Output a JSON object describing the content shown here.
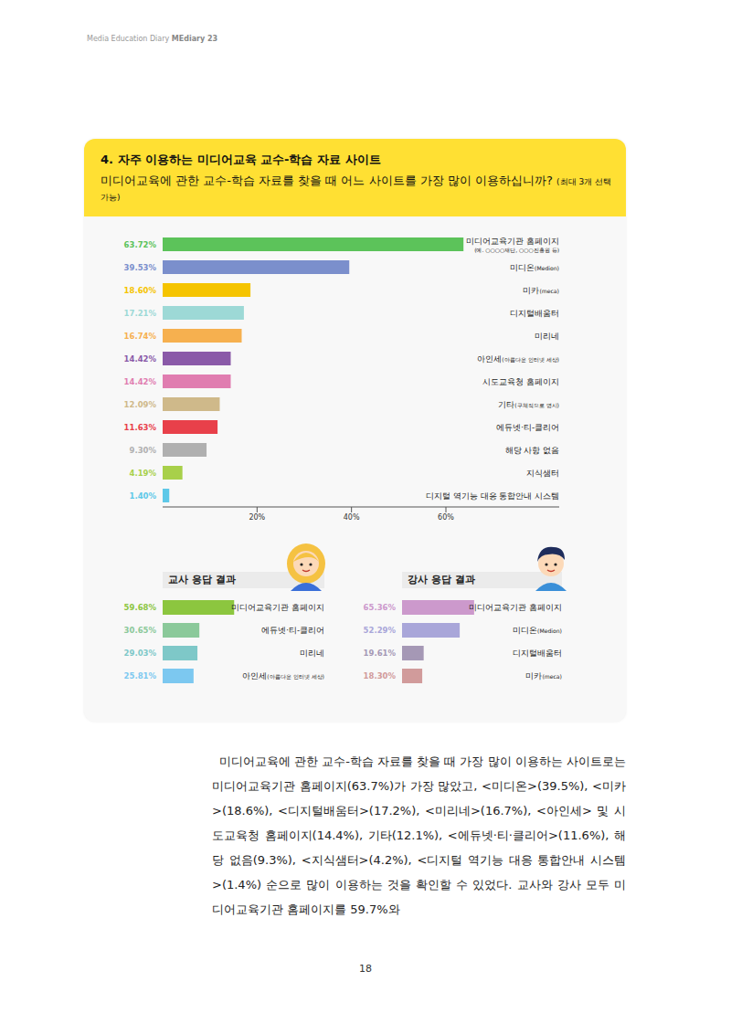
{
  "header": {
    "text": "Media Education Diary",
    "brand": "MEdiary 23"
  },
  "section": {
    "title": "4. 자주 이용하는 미디어교육 교수-학습 자료 사이트",
    "question": "미디어교육에 관한 교수-학습 자료를 찾을 때 어느 사이트를 가장 많이 이용하십니까?",
    "note": "(최대 3개 선택 가능)"
  },
  "chart_data": [
    {
      "type": "bar",
      "orientation": "horizontal",
      "categories": [
        "미디어교육기관 홈페이지\n(예. ○○○○재단, ○○○진흥원 등)",
        "미디온(Medion)",
        "미카(meca)",
        "디지털배움터",
        "미리네",
        "아인세(아름다운 인터넷 세상)",
        "시도교육청 홈페이지",
        "기타(구체적으로 명시)",
        "에듀넷·티-클리어",
        "해당 사항 없음",
        "지식샘터",
        "디지털 역기능 대응 통합안내 시스템"
      ],
      "values": [
        63.72,
        39.53,
        18.6,
        17.21,
        16.74,
        14.42,
        14.42,
        12.09,
        11.63,
        9.3,
        4.19,
        1.4
      ],
      "value_labels": [
        "63.72%",
        "39.53%",
        "18.60%",
        "17.21%",
        "16.74%",
        "14.42%",
        "14.42%",
        "12.09%",
        "11.63%",
        "9.30%",
        "4.19%",
        "1.40%"
      ],
      "colors": [
        "#5cc35a",
        "#7b8fcc",
        "#f5c400",
        "#9dd9d6",
        "#f6b04f",
        "#8a5aa8",
        "#e07db0",
        "#cfb98a",
        "#e8404a",
        "#b0b0b0",
        "#a8d04a",
        "#5ec8e8"
      ],
      "data_labels": true,
      "xlim": [
        0,
        84
      ],
      "xticks": [
        {
          "value": 20,
          "label": "20%"
        },
        {
          "value": 40,
          "label": "40%"
        },
        {
          "value": 60,
          "label": "60%"
        }
      ],
      "grid": false
    },
    {
      "type": "bar",
      "title": "교사 응답 결과",
      "orientation": "horizontal",
      "categories": [
        "미디어교육기관 홈페이지",
        "에듀넷·티-클리어",
        "미리네",
        "아인세(아름다운 인터넷 세상)"
      ],
      "values": [
        59.68,
        30.65,
        29.03,
        25.81
      ],
      "value_labels": [
        "59.68%",
        "30.65%",
        "29.03%",
        "25.81%"
      ],
      "colors": [
        "#8cc63f",
        "#8bc99a",
        "#7ec8c8",
        "#7cc8f0"
      ],
      "data_labels": true,
      "xlim": [
        0,
        135
      ],
      "tick_labels": "y",
      "grid": false
    },
    {
      "type": "bar",
      "title": "강사 응답 결과",
      "orientation": "horizontal",
      "categories": [
        "미디어교육기관 홈페이지",
        "미디온(Medion)",
        "디지털배움터",
        "미카(meca)"
      ],
      "values": [
        65.36,
        52.29,
        19.61,
        18.3
      ],
      "value_labels": [
        "65.36%",
        "52.29%",
        "19.61%",
        "18.30%"
      ],
      "colors": [
        "#cc99cc",
        "#a9a6d9",
        "#a598b5",
        "#d19b9b"
      ],
      "data_labels": true,
      "xlim": [
        0,
        145
      ],
      "tick_labels": "y",
      "grid": false
    }
  ],
  "body": "미디어교육에 관한 교수-학습 자료를 찾을 때 가장 많이 이용하는 사이트로는 미디어교육기관 홈페이지(63.7%)가 가장 많았고, <미디온>(39.5%), <미카>(18.6%), <디지털배움터>(17.2%), <미리네>(16.7%), <아인세> 및 시도교육청 홈페이지(14.4%), 기타(12.1%), <에듀넷·티·클리어>(11.6%), 해당 없음(9.3%), <지식샘터>(4.2%), <디지털 역기능 대응 통합안내 시스템>(1.4%) 순으로 많이 이용하는 것을 확인할 수 있었다. 교사와 강사 모두 미디어교육기관 홈페이지를 59.7%와",
  "page_number": 18
}
